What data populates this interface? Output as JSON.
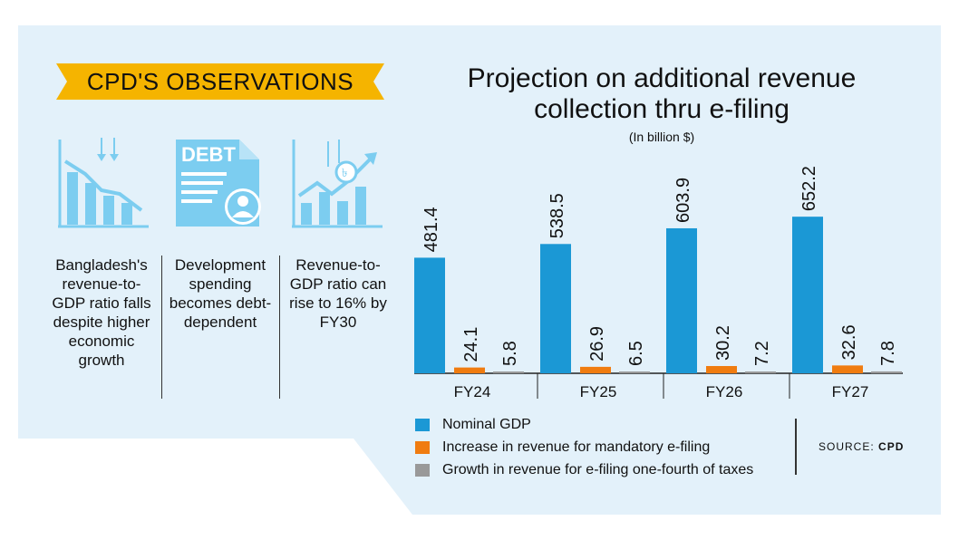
{
  "observations": {
    "heading": "CPD'S OBSERVATIONS",
    "items": [
      {
        "icon": "declining-chart-icon",
        "text": "Bangladesh's revenue-to-GDP ratio falls despite higher economic growth"
      },
      {
        "icon": "debt-document-icon",
        "icon_text": "DEBT",
        "text": "Development spending becomes debt-dependent"
      },
      {
        "icon": "rising-chart-taka-icon",
        "text": "Revenue-to-GDP ratio can rise to 16% by FY30"
      }
    ]
  },
  "colors": {
    "panel": "#e3f1fa",
    "banner": "#f5b400",
    "icon": "#7ccdf0",
    "nominal_gdp": "#1b98d5",
    "mandatory": "#f07c10",
    "one_fourth": "#999999"
  },
  "chart_data": {
    "type": "bar",
    "title": "Projection on additional revenue collection thru e-filing",
    "subtitle": "(In billion $)",
    "categories": [
      "FY24",
      "FY25",
      "FY26",
      "FY27"
    ],
    "series": [
      {
        "name": "Nominal GDP",
        "values": [
          481.4,
          538.5,
          603.9,
          652.2
        ],
        "labels": [
          "481.4",
          "538.5",
          "603.9",
          "652.2"
        ],
        "color": "#1b98d5"
      },
      {
        "name": "Increase in revenue for mandatory e-filing",
        "values": [
          24.1,
          26.9,
          30.2,
          32.6
        ],
        "labels": [
          "24.1",
          "26.9",
          "30.2",
          "32.6"
        ],
        "color": "#f07c10"
      },
      {
        "name": "Growth in revenue for e-filing one-fourth of taxes",
        "values": [
          5.8,
          6.5,
          7.2,
          7.8
        ],
        "labels": [
          "5.8",
          "6.5",
          "7.2",
          "7.8"
        ],
        "color": "#999999"
      }
    ],
    "ylim": [
      0,
      700
    ],
    "grid": false,
    "legend": "bottom-left"
  },
  "source": {
    "label": "SOURCE:",
    "value": "CPD"
  }
}
